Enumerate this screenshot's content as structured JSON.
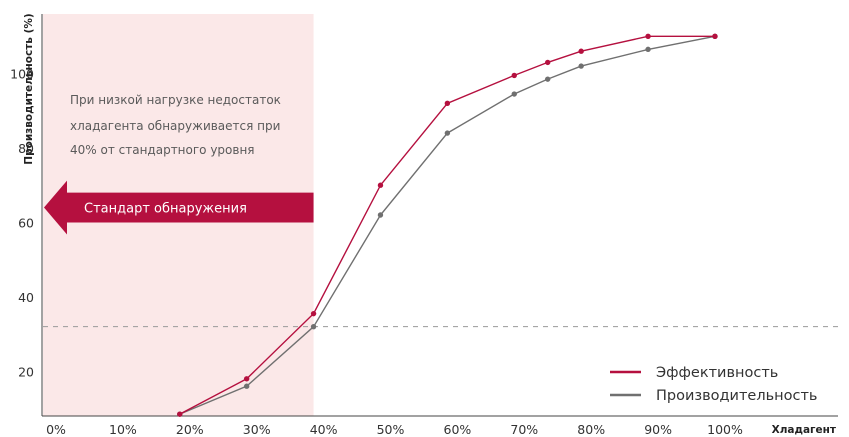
{
  "chart_data": {
    "type": "line",
    "xlabel": "Хладагент",
    "ylabel": "Производительность (%)",
    "x_ticks": [
      "0%",
      "10%",
      "20%",
      "30%",
      "40%",
      "50%",
      "60%",
      "70%",
      "80%",
      "90%",
      "100%"
    ],
    "y_ticks": [
      20,
      40,
      60,
      80,
      100
    ],
    "xlim": [
      0,
      100
    ],
    "ylim": [
      8,
      116
    ],
    "grid": false,
    "legend": "bottom-right",
    "series": [
      {
        "name": "Эффективность",
        "color": "#b5103f",
        "x": [
          18.5,
          28.5,
          38.5,
          48.5,
          58.5,
          68.5,
          73.5,
          78.5,
          88.5,
          98.5
        ],
        "y": [
          8.5,
          18,
          35.5,
          70,
          92,
          99.5,
          103,
          106,
          110,
          110
        ]
      },
      {
        "name": "Производительность",
        "color": "#707070",
        "x": [
          18.5,
          28.5,
          38.5,
          48.5,
          58.5,
          68.5,
          73.5,
          78.5,
          88.5,
          98.5
        ],
        "y": [
          8.5,
          16,
          32,
          62,
          84,
          94.5,
          98.5,
          102,
          106.5,
          110
        ]
      }
    ],
    "reference_line": {
      "y": 32,
      "color": "#9a9a9a",
      "style": "dashed"
    },
    "shaded_region": {
      "x_from": 0,
      "x_to": 38.5,
      "color": "#fbe8e8",
      "note": [
        "При низкой нагрузке недостаток",
        "хладагента обнаруживается при",
        "40% от стандартного уровня"
      ]
    },
    "arrow": {
      "label": "Стандарт обнаружения",
      "color": "#b5103f",
      "y_from": 60,
      "y_to": 68
    }
  }
}
